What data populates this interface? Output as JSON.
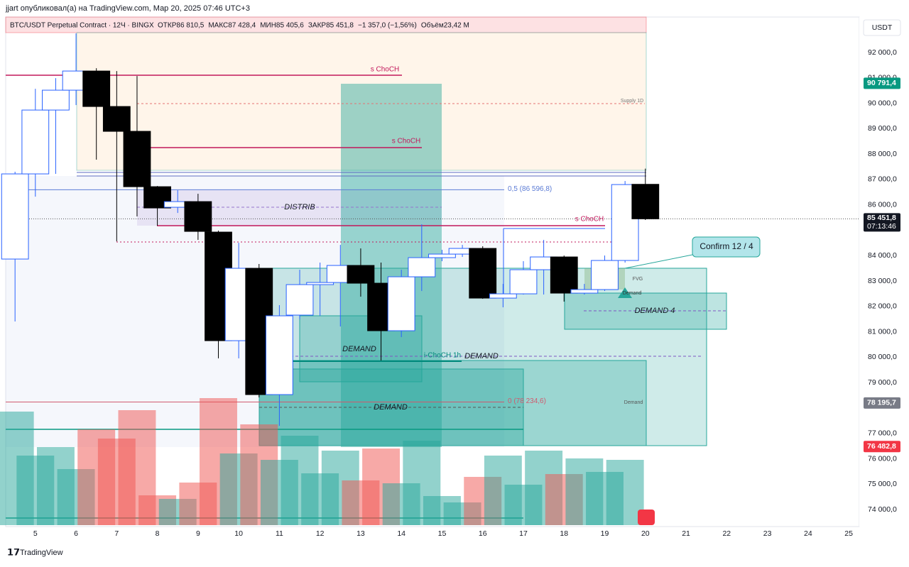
{
  "chart_data": {
    "type": "candlestick",
    "publisher": "jjart опубликовал(а) на TradingView.com, Мар 20, 2025 07:46 UTC+3",
    "symbol": "BTC/USDT Perpetual Contract · 12Ч · BINGX",
    "ohlc_texts": [
      "ОТКР86 810,5",
      "МАКС87 428,4",
      "МИН85 405,6",
      "ЗАКР85 451,8",
      "−1 357,0 (−1,56%)",
      "Объём23,42 M"
    ],
    "currency": "USDT",
    "brand": "TradingView",
    "x": [
      4.5,
      5,
      5.5,
      6,
      6.5,
      7,
      7.5,
      8,
      8.5,
      9,
      9.5,
      10,
      10.5,
      11,
      11.5,
      12,
      12.5,
      13,
      13.5,
      14,
      14.5,
      15,
      15.5,
      16,
      16.5,
      17,
      17.5,
      18,
      18.5,
      19,
      19.5,
      20
    ],
    "open": [
      83867,
      87221,
      89736,
      90519,
      91273,
      89876,
      88898,
      86717,
      85907,
      86130,
      84929,
      80652,
      83503,
      78528,
      81659,
      82860,
      82944,
      83615,
      82916,
      81044,
      83168,
      83922,
      84062,
      84286,
      82329,
      82497,
      83447,
      83950,
      82525,
      82665,
      83811,
      86810.5
    ],
    "high": [
      87305,
      90575,
      90994,
      92755,
      91385,
      91273,
      91078,
      86745,
      86578,
      86438,
      84985,
      84509,
      83671,
      82050,
      83447,
      83727,
      84425,
      84286,
      83727,
      83447,
      85236,
      84230,
      84425,
      84370,
      82888,
      83783,
      84621,
      84006,
      82888,
      84006,
      86941,
      87428.4
    ],
    "low": [
      81407,
      86326,
      87221,
      89932,
      87780,
      84565,
      85544,
      85180,
      85683,
      84621,
      79954,
      79954,
      78416,
      77298,
      81491,
      81631,
      81211,
      82385,
      79870,
      80792,
      82609,
      83783,
      83950,
      82301,
      81966,
      82469,
      82469,
      82190,
      82469,
      82609,
      83727,
      85405.6
    ],
    "close": [
      87221,
      89736,
      90519,
      91273,
      89876,
      88898,
      86717,
      85879,
      86130,
      84957,
      80652,
      83503,
      78528,
      81631,
      82860,
      82944,
      83615,
      82916,
      81044,
      83168,
      83922,
      84062,
      84286,
      82329,
      82497,
      83447,
      83950,
      82525,
      82665,
      83811,
      86801,
      85451.8
    ],
    "volume": [
      160,
      98,
      110,
      79,
      135,
      122,
      162,
      42,
      37,
      60,
      179,
      101,
      142,
      92,
      126,
      73,
      105,
      63,
      108,
      59,
      119,
      41,
      32,
      68,
      98,
      57,
      105,
      72,
      94,
      75,
      92,
      null
    ],
    "up_color": "#2962ff",
    "down_color": "#000000",
    "xlim": [
      4.27,
      25.26
    ],
    "xticks": [
      5,
      6,
      7,
      8,
      9,
      10,
      11,
      12,
      13,
      14,
      15,
      16,
      17,
      18,
      19,
      20,
      21,
      22,
      23,
      24,
      25
    ],
    "ylim": [
      73330,
      93400
    ],
    "yticks": [
      {
        "value": 74000,
        "label": "74 000,0"
      },
      {
        "value": 75000,
        "label": "75 000,0"
      },
      {
        "value": 76000,
        "label": "76 000,0"
      },
      {
        "value": 77000,
        "label": "77 000,0"
      },
      {
        "value": 79000,
        "label": "79 000,0"
      },
      {
        "value": 80000,
        "label": "80 000,0"
      },
      {
        "value": 81000,
        "label": "81 000,0"
      },
      {
        "value": 82000,
        "label": "82 000,0"
      },
      {
        "value": 83000,
        "label": "83 000,0"
      },
      {
        "value": 84000,
        "label": "84 000,0"
      },
      {
        "value": 86000,
        "label": "86 000,0"
      },
      {
        "value": 87000,
        "label": "87 000,0"
      },
      {
        "value": 88000,
        "label": "88 000,0"
      },
      {
        "value": 89000,
        "label": "89 000,0"
      },
      {
        "value": 90000,
        "label": "90 000,0"
      },
      {
        "value": 91000,
        "label": "91 000,0"
      },
      {
        "value": 92000,
        "label": "92 000,0"
      }
    ],
    "grid": true,
    "price_badges": [
      {
        "value": 90791.4,
        "label": "90 791,4",
        "color": "#089981"
      },
      {
        "value": 85451.8,
        "label": "85 451,8",
        "color": "#131722",
        "countdown": "07:13:46"
      },
      {
        "value": 78195.7,
        "label": "78 195,7",
        "color": "#787b86"
      },
      {
        "value": 76482.8,
        "label": "76 482,8",
        "color": "#f23645"
      }
    ],
    "fib_lines": [
      {
        "value": 86596.8,
        "label": "0,5 (86 596,8)",
        "color": "#5b7bd5"
      },
      {
        "value": 78234.6,
        "label": "0 (78 234,6)",
        "color": "#d05a6e"
      }
    ],
    "annotations": [
      "s ChoCH",
      "s ChoCH",
      "s ChoCH",
      "DISTRIB",
      "DEMAND",
      "DEMAND",
      "DEMAND",
      "i-ChoCH 1h",
      "DEMAND 4",
      "FVG",
      "Demand",
      "Demand",
      "Supply 1D",
      "Confirm 12 / 4"
    ]
  }
}
